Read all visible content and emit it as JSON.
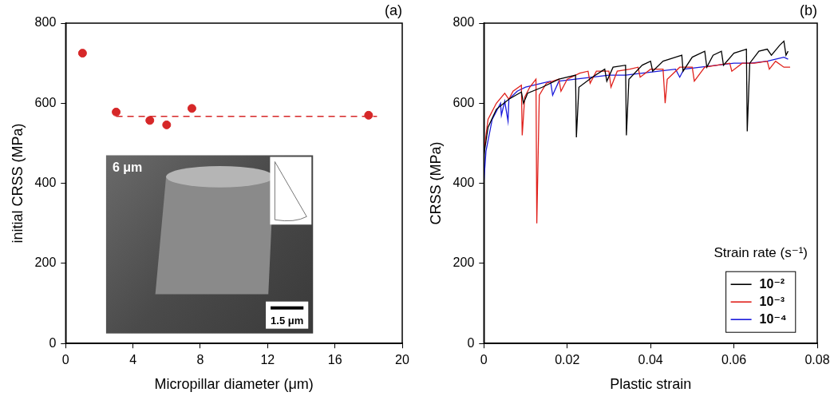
{
  "chart_data": [
    {
      "type": "scatter",
      "panel": "(a)",
      "x_label": "Micropillar diameter (μm)",
      "y_label": "initial CRSS (MPa)",
      "x": [
        1,
        3,
        5,
        6,
        7.5,
        18
      ],
      "values": [
        725,
        578,
        557,
        546,
        587,
        570
      ],
      "color": "#d62728",
      "marker": "circle",
      "reference_line": {
        "y": 567,
        "x": [
          3,
          18.5
        ],
        "line_style": "dashed",
        "color": "#d62728"
      },
      "inset": {
        "label": "6 μm",
        "scale_bar": "1.5 μm"
      },
      "xlim": [
        0,
        20
      ],
      "xticks": [
        0,
        4,
        8,
        12,
        16,
        20
      ],
      "ylim": [
        0,
        800
      ],
      "yticks": [
        0,
        200,
        400,
        600,
        800
      ],
      "grid": false
    },
    {
      "type": "line",
      "panel": "(b)",
      "x_label": "Plastic strain",
      "y_label": "CRSS (MPa)",
      "legend_title": "Strain rate (s⁻¹)",
      "legend": "lower right",
      "series": [
        {
          "name": "10⁻²",
          "color": "#000000",
          "x": [
            0,
            0.001,
            0.003,
            0.006,
            0.009,
            0.0095,
            0.0105,
            0.014,
            0.018,
            0.022,
            0.0222,
            0.0228,
            0.026,
            0.029,
            0.0295,
            0.031,
            0.034,
            0.0342,
            0.0348,
            0.038,
            0.04,
            0.0405,
            0.043,
            0.046,
            0.0475,
            0.0478,
            0.05,
            0.053,
            0.0535,
            0.055,
            0.057,
            0.0575,
            0.06,
            0.063,
            0.0632,
            0.0638,
            0.066,
            0.068,
            0.069,
            0.071,
            0.072,
            0.0725,
            0.073
          ],
          "values": [
            470,
            540,
            585,
            610,
            628,
            600,
            625,
            640,
            660,
            670,
            515,
            640,
            665,
            685,
            655,
            690,
            695,
            520,
            660,
            695,
            705,
            680,
            705,
            715,
            720,
            680,
            715,
            730,
            690,
            720,
            730,
            695,
            725,
            735,
            530,
            700,
            730,
            735,
            720,
            745,
            755,
            720,
            730
          ]
        },
        {
          "name": "10⁻³",
          "color": "#e0201b",
          "x": [
            0,
            0.001,
            0.003,
            0.005,
            0.006,
            0.007,
            0.009,
            0.0092,
            0.0098,
            0.011,
            0.0125,
            0.0127,
            0.0133,
            0.015,
            0.018,
            0.0185,
            0.02,
            0.023,
            0.025,
            0.0255,
            0.027,
            0.03,
            0.0305,
            0.032,
            0.035,
            0.037,
            0.0375,
            0.04,
            0.043,
            0.0435,
            0.044,
            0.047,
            0.05,
            0.0505,
            0.053,
            0.056,
            0.059,
            0.0595,
            0.062,
            0.065,
            0.068,
            0.0685,
            0.07,
            0.072,
            0.0735
          ],
          "values": [
            480,
            560,
            600,
            625,
            610,
            630,
            645,
            520,
            615,
            640,
            660,
            300,
            620,
            650,
            660,
            630,
            660,
            675,
            680,
            650,
            680,
            680,
            640,
            680,
            685,
            690,
            665,
            685,
            685,
            600,
            660,
            690,
            690,
            655,
            690,
            695,
            700,
            680,
            700,
            700,
            705,
            685,
            705,
            690,
            690
          ]
        },
        {
          "name": "10⁻⁴",
          "color": "#1a1adb",
          "x": [
            0,
            0.0005,
            0.002,
            0.003,
            0.004,
            0.0042,
            0.005,
            0.0058,
            0.006,
            0.008,
            0.01,
            0.012,
            0.014,
            0.016,
            0.0165,
            0.018,
            0.022,
            0.026,
            0.03,
            0.034,
            0.038,
            0.042,
            0.046,
            0.047,
            0.048,
            0.052,
            0.056,
            0.06,
            0.064,
            0.068,
            0.07,
            0.072,
            0.073
          ],
          "values": [
            405,
            480,
            560,
            580,
            600,
            570,
            605,
            555,
            610,
            630,
            640,
            645,
            650,
            655,
            620,
            655,
            660,
            665,
            670,
            670,
            675,
            680,
            685,
            665,
            685,
            690,
            695,
            700,
            700,
            705,
            710,
            715,
            710
          ]
        }
      ],
      "xlim": [
        0,
        0.08
      ],
      "xticks": [
        0,
        0.02,
        0.04,
        0.06,
        0.08
      ],
      "ylim": [
        0,
        800
      ],
      "yticks": [
        0,
        200,
        400,
        600,
        800
      ],
      "grid": false
    }
  ]
}
